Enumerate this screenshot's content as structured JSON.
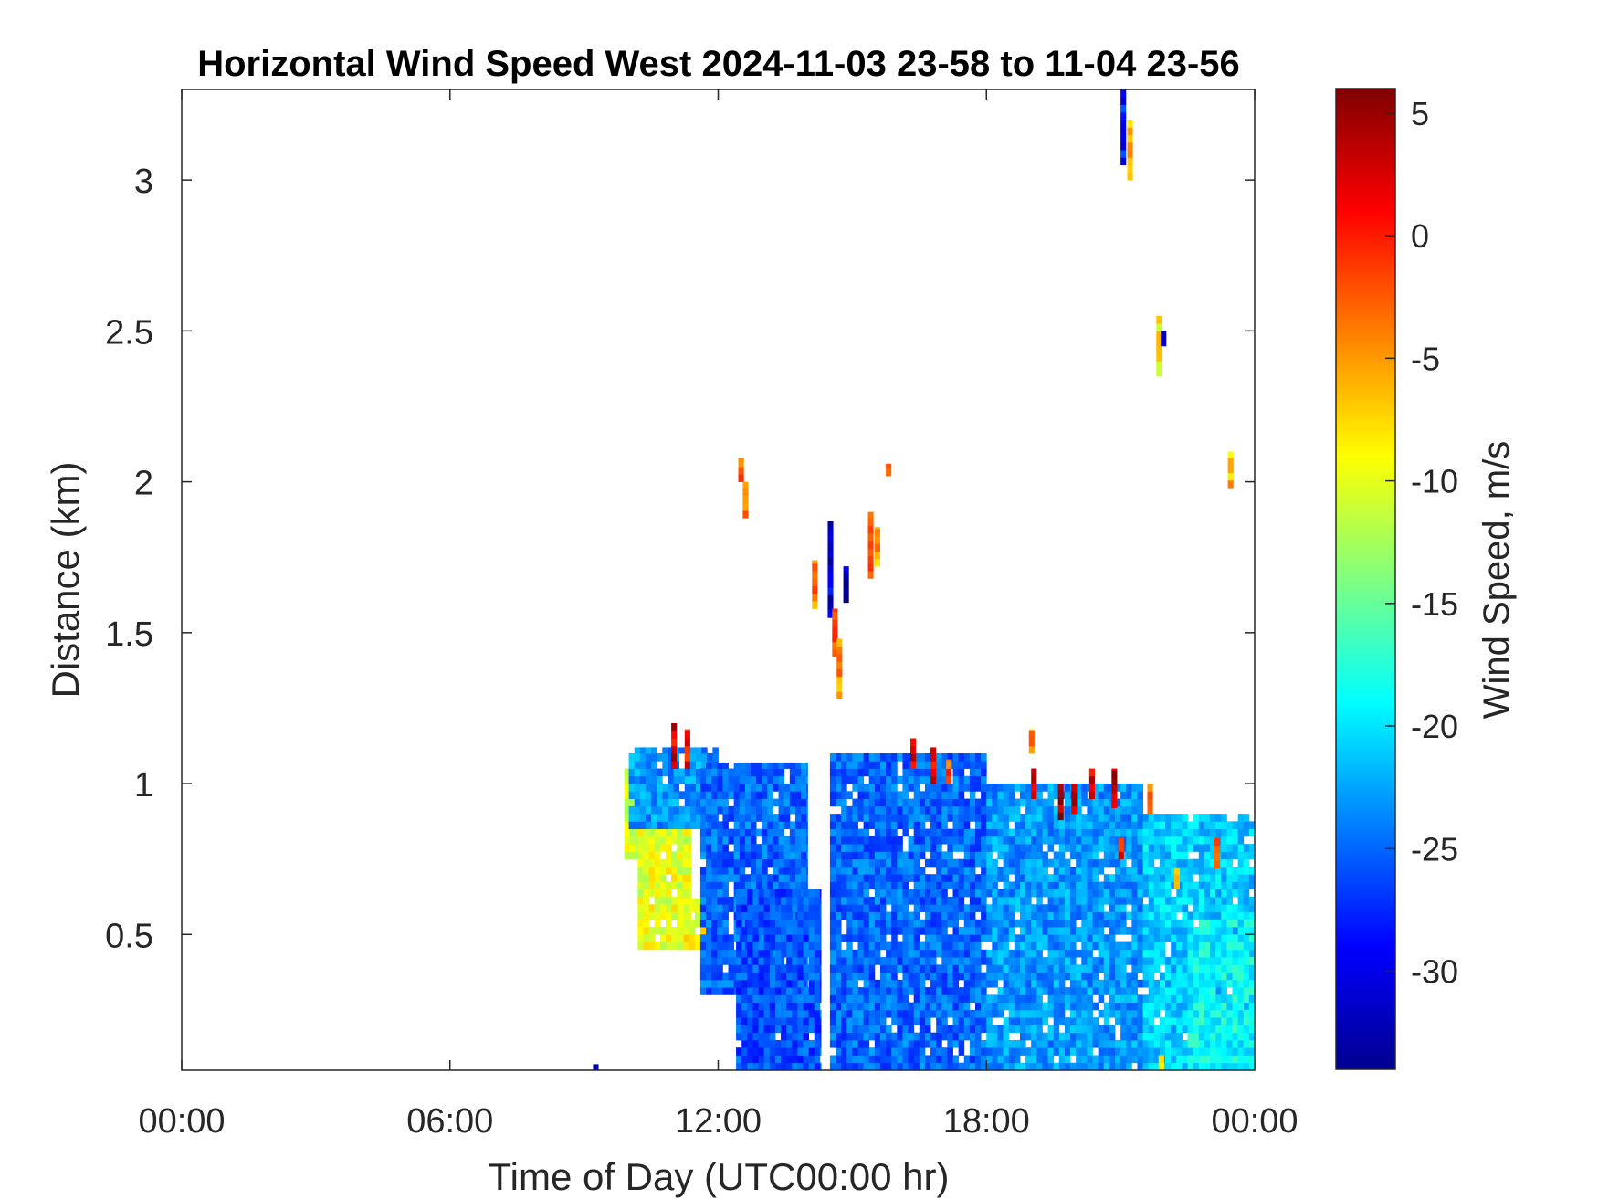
{
  "chart_data": {
    "type": "heatmap",
    "title": "Horizontal Wind Speed West 2024-11-03 23-58 to 11-04 23-56",
    "xlabel": "Time of Day (UTC00:00 hr)",
    "ylabel": "Distance (km)",
    "colorbar_label": "Wind Speed, m/s",
    "colormap": "jet",
    "x_unit": "hours",
    "xlim": [
      0,
      24
    ],
    "ylim": [
      0.05,
      3.3
    ],
    "clim": [
      -34,
      6
    ],
    "x_ticks": [
      0,
      6,
      12,
      18,
      24
    ],
    "x_tick_labels": [
      "00:00",
      "06:00",
      "12:00",
      "18:00",
      "00:00"
    ],
    "y_ticks": [
      0.5,
      1,
      1.5,
      2,
      2.5,
      3
    ],
    "y_tick_labels": [
      "0.5",
      "1",
      "1.5",
      "2",
      "2.5",
      "3"
    ],
    "colorbar_ticks": [
      5,
      0,
      -5,
      -10,
      -15,
      -20,
      -25,
      -30
    ],
    "colorbar_tick_labels": [
      "5",
      "0",
      "-5",
      "-10",
      "-15",
      "-20",
      "-25",
      "-30"
    ],
    "cell_size": {
      "dt_hours": 0.125,
      "dz_km": 0.025
    },
    "region_estimate_note_omitted": true,
    "regions": [
      {
        "t": [
          9.9,
          10.6
        ],
        "z": [
          0.75,
          1.05
        ],
        "value": -11
      },
      {
        "t": [
          10.2,
          11.4
        ],
        "z": [
          0.45,
          0.85
        ],
        "value": -10
      },
      {
        "t": [
          11.1,
          12.2
        ],
        "z": [
          0.45,
          0.62
        ],
        "value": -9
      },
      {
        "t": [
          10.0,
          12.0
        ],
        "z": [
          0.85,
          1.12
        ],
        "value": -23
      },
      {
        "t": [
          11.6,
          14.0
        ],
        "z": [
          0.3,
          1.07
        ],
        "value": -25
      },
      {
        "t": [
          12.4,
          14.3
        ],
        "z": [
          0.05,
          0.65
        ],
        "value": -26
      },
      {
        "t": [
          14.5,
          18.0
        ],
        "z": [
          0.05,
          1.1
        ],
        "value": -25
      },
      {
        "t": [
          18.0,
          21.5
        ],
        "z": [
          0.05,
          1.0
        ],
        "value": -23
      },
      {
        "t": [
          21.5,
          24.0
        ],
        "z": [
          0.05,
          0.9
        ],
        "value": -21
      },
      {
        "t": [
          22.5,
          24.0
        ],
        "z": [
          0.05,
          0.55
        ],
        "value": -19
      }
    ],
    "streaks": [
      {
        "t": 10.95,
        "z": [
          1.05,
          1.2
        ],
        "value": 2
      },
      {
        "t": 11.25,
        "z": [
          1.05,
          1.18
        ],
        "value": 1
      },
      {
        "t": 12.45,
        "z": [
          2.0,
          2.08
        ],
        "value": -3
      },
      {
        "t": 12.55,
        "z": [
          1.88,
          2.0
        ],
        "value": -4
      },
      {
        "t": 14.1,
        "z": [
          1.58,
          1.74
        ],
        "value": -4
      },
      {
        "t": 14.45,
        "z": [
          1.55,
          1.87
        ],
        "value": -30
      },
      {
        "t": 14.55,
        "z": [
          1.42,
          1.58
        ],
        "value": -2
      },
      {
        "t": 14.65,
        "z": [
          1.28,
          1.48
        ],
        "value": -5
      },
      {
        "t": 14.8,
        "z": [
          1.6,
          1.72
        ],
        "value": -33
      },
      {
        "t": 15.35,
        "z": [
          1.68,
          1.9
        ],
        "value": -3
      },
      {
        "t": 15.5,
        "z": [
          1.72,
          1.85
        ],
        "value": -6
      },
      {
        "t": 15.75,
        "z": [
          2.02,
          2.06
        ],
        "value": -4
      },
      {
        "t": 16.3,
        "z": [
          1.05,
          1.15
        ],
        "value": 3
      },
      {
        "t": 16.75,
        "z": [
          1.0,
          1.12
        ],
        "value": 2
      },
      {
        "t": 17.1,
        "z": [
          1.0,
          1.08
        ],
        "value": -2
      },
      {
        "t": 18.95,
        "z": [
          1.1,
          1.18
        ],
        "value": -4
      },
      {
        "t": 19.0,
        "z": [
          0.95,
          1.05
        ],
        "value": 3
      },
      {
        "t": 19.6,
        "z": [
          0.88,
          1.0
        ],
        "value": 4
      },
      {
        "t": 19.9,
        "z": [
          0.9,
          1.0
        ],
        "value": 3
      },
      {
        "t": 20.3,
        "z": [
          0.95,
          1.05
        ],
        "value": 2
      },
      {
        "t": 20.8,
        "z": [
          0.92,
          1.05
        ],
        "value": 3
      },
      {
        "t": 20.95,
        "z": [
          0.75,
          0.82
        ],
        "value": 1
      },
      {
        "t": 21.0,
        "z": [
          3.05,
          3.3
        ],
        "value": -28
      },
      {
        "t": 21.15,
        "z": [
          3.0,
          3.2
        ],
        "value": -6
      },
      {
        "t": 21.6,
        "z": [
          0.9,
          1.0
        ],
        "value": -3
      },
      {
        "t": 21.8,
        "z": [
          2.35,
          2.55
        ],
        "value": -8
      },
      {
        "t": 21.9,
        "z": [
          2.45,
          2.5
        ],
        "value": -33
      },
      {
        "t": 21.85,
        "z": [
          0.05,
          0.1
        ],
        "value": -10
      },
      {
        "t": 22.2,
        "z": [
          0.65,
          0.72
        ],
        "value": -6
      },
      {
        "t": 23.1,
        "z": [
          0.72,
          0.82
        ],
        "value": -2
      },
      {
        "t": 23.4,
        "z": [
          1.98,
          2.1
        ],
        "value": -6
      },
      {
        "t": 9.2,
        "z": [
          0.05,
          0.07
        ],
        "value": -30
      }
    ]
  }
}
